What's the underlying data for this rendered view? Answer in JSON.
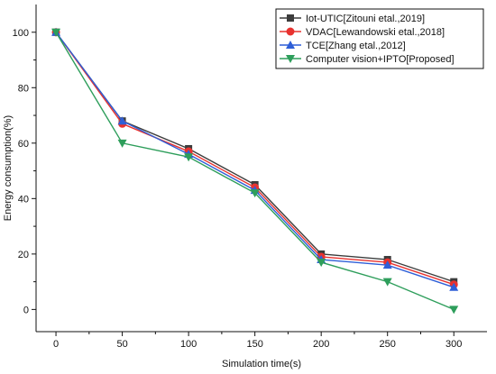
{
  "chart_data": {
    "type": "line",
    "title": "",
    "xlabel": "Simulation time(s)",
    "ylabel": "Energy consumption(%)",
    "x": [
      0,
      50,
      100,
      150,
      200,
      250,
      300
    ],
    "xlim": [
      -15,
      325
    ],
    "ylim": [
      -8,
      110
    ],
    "xticks": [
      0,
      50,
      100,
      150,
      200,
      250,
      300
    ],
    "yticks": [
      0,
      20,
      40,
      60,
      80,
      100
    ],
    "grid": false,
    "legend_position": "top-right",
    "series": [
      {
        "name": "Iot-UTIC[Zitouni etal.,2019]",
        "color": "#3c3c3c",
        "marker": "square",
        "values": [
          100,
          68,
          58,
          45,
          20,
          18,
          10
        ]
      },
      {
        "name": "VDAC[Lewandowski etal.,2018]",
        "color": "#e8322f",
        "marker": "circle",
        "values": [
          100,
          67,
          57,
          44,
          19,
          17,
          9
        ]
      },
      {
        "name": "TCE[Zhang etal.,2012]",
        "color": "#2f5fd7",
        "marker": "triangle-up",
        "values": [
          100,
          68,
          56,
          43,
          18,
          16,
          8
        ]
      },
      {
        "name": "Computer vision+IPTO[Proposed]",
        "color": "#2e9e5b",
        "marker": "triangle-down",
        "values": [
          100,
          60,
          55,
          42,
          17,
          10,
          0
        ]
      }
    ]
  }
}
